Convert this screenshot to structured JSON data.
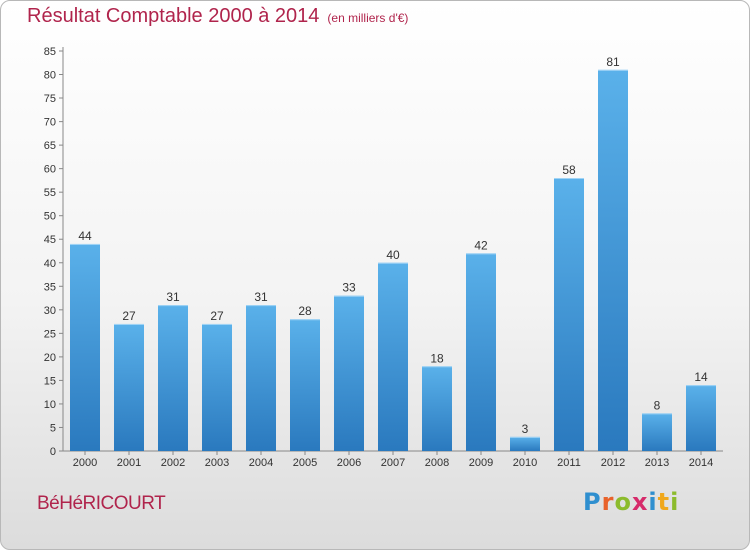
{
  "title": "Résultat Comptable 2000 à 2014",
  "subtitle": "(en milliers d'€)",
  "place": "BéHéRICOURT",
  "logo": {
    "letters": [
      "P",
      "r",
      "o",
      "x",
      "i",
      "t",
      "i"
    ],
    "colors": [
      "#2f8fcf",
      "#e8622a",
      "#8cbb2c",
      "#d62a6a",
      "#2f8fcf",
      "#f0a81c",
      "#8cbb2c"
    ]
  },
  "colors": {
    "bar_light": "#5ab1ea",
    "bar_dark": "#2a79be",
    "title": "#b0244c"
  },
  "chart_data": {
    "type": "bar",
    "categories": [
      "2000",
      "2001",
      "2002",
      "2003",
      "2004",
      "2005",
      "2006",
      "2007",
      "2008",
      "2009",
      "2010",
      "2011",
      "2012",
      "2013",
      "2014"
    ],
    "values": [
      44,
      27,
      31,
      27,
      31,
      28,
      33,
      40,
      18,
      42,
      3,
      58,
      81,
      8,
      14
    ],
    "title": "Résultat Comptable 2000 à 2014",
    "xlabel": "",
    "ylabel": "",
    "ylim": [
      0,
      85
    ],
    "yticks": [
      0,
      5,
      10,
      15,
      20,
      25,
      30,
      35,
      40,
      45,
      50,
      55,
      60,
      65,
      70,
      75,
      80,
      85
    ],
    "grid": false,
    "data_labels": true
  }
}
